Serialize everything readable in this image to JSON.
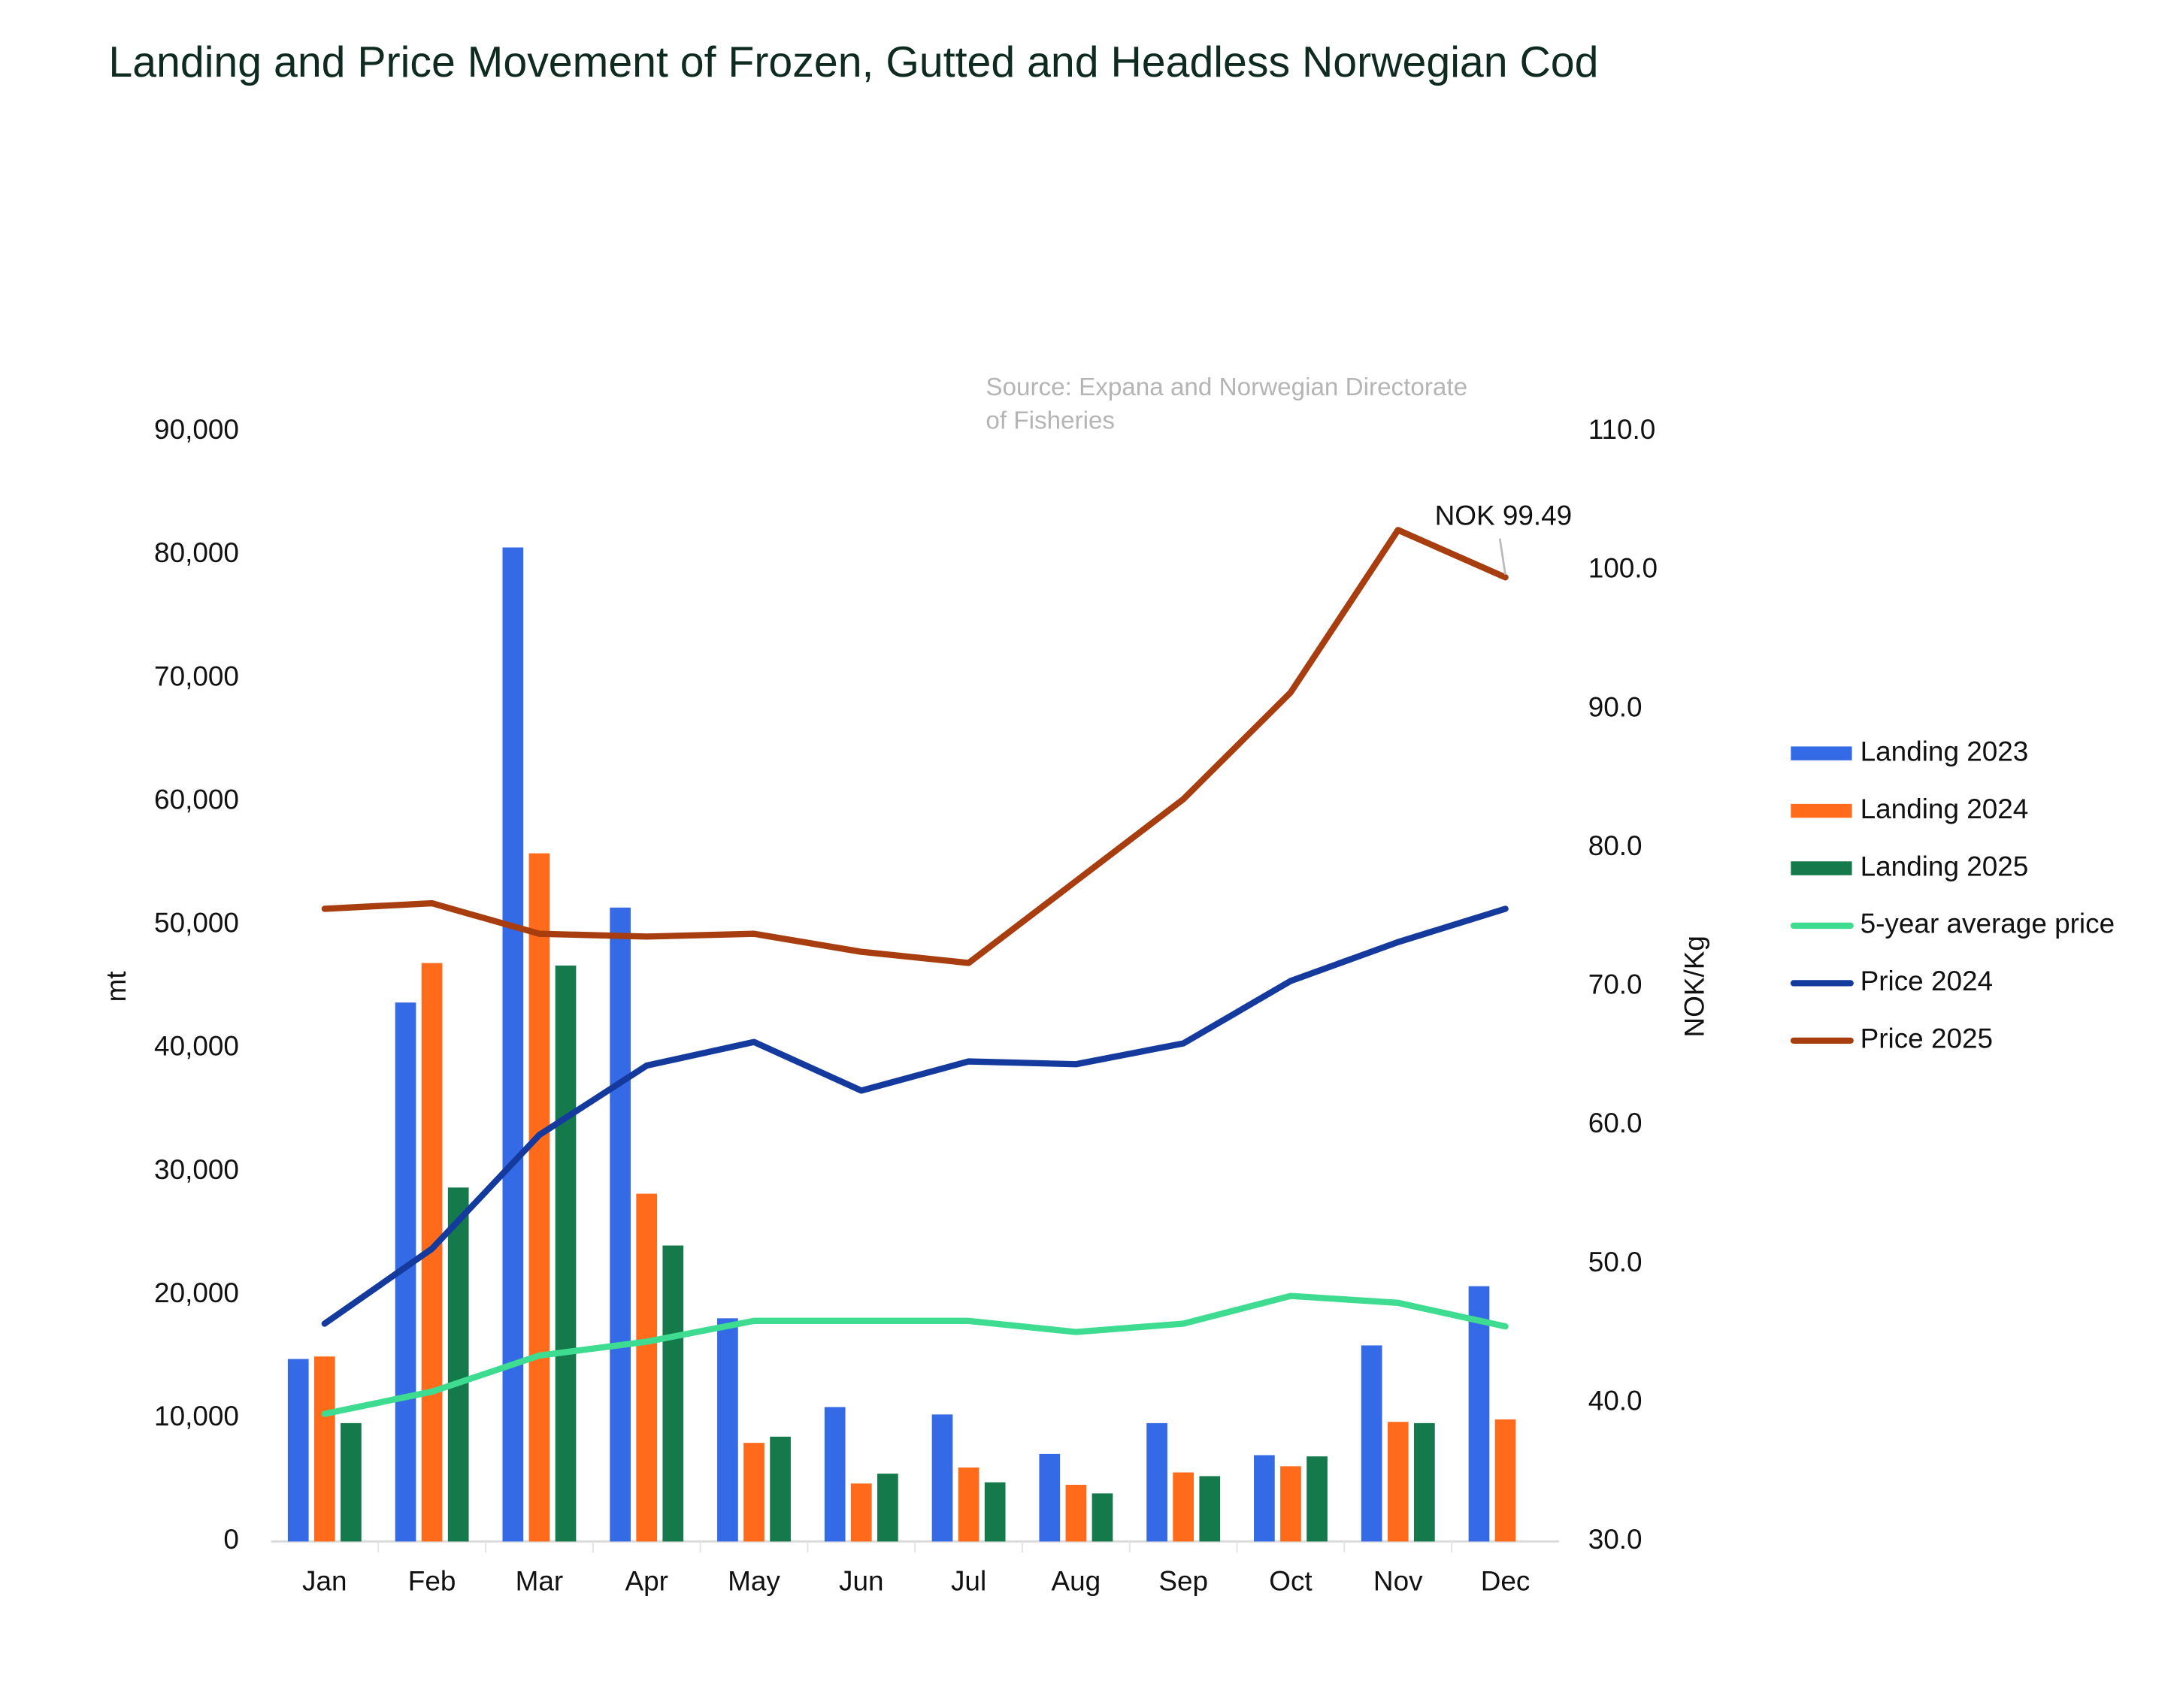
{
  "chart_data": {
    "type": "bar",
    "title": "Landing and Price Movement of Frozen, Gutted and Headless Norwegian Cod",
    "source": [
      "Source: Expana and Norwegian Directorate",
      "of Fisheries"
    ],
    "annotation": "NOK 99.49",
    "ylabel": "mt",
    "y2label": "NOK/Kg",
    "categories": [
      "Jan",
      "Feb",
      "Mar",
      "Apr",
      "May",
      "Jun",
      "Jul",
      "Aug",
      "Sep",
      "Oct",
      "Nov",
      "Dec"
    ],
    "series": [
      {
        "name": "Landing 2023",
        "type": "bar",
        "color": "#356ae6",
        "values": [
          14800,
          43700,
          80600,
          51400,
          18100,
          10900,
          10300,
          7100,
          9600,
          7000,
          15900,
          20700
        ]
      },
      {
        "name": "Landing 2024",
        "type": "bar",
        "color": "#ff6b1a",
        "values": [
          15000,
          46900,
          55800,
          28200,
          8000,
          4700,
          6000,
          4600,
          5600,
          6100,
          9700,
          9900
        ]
      },
      {
        "name": "Landing 2025",
        "type": "bar",
        "color": "#147a4b",
        "values": [
          9600,
          28700,
          46700,
          24000,
          8500,
          5500,
          4800,
          3900,
          5300,
          6900,
          9600,
          null
        ]
      },
      {
        "name": "5-year average price",
        "type": "line",
        "axis": "y2",
        "color": "#3ddc91",
        "values": [
          39.2,
          40.8,
          43.4,
          44.4,
          45.9,
          45.9,
          45.9,
          45.1,
          45.7,
          47.7,
          47.2,
          45.5
        ]
      },
      {
        "name": "Price 2024",
        "type": "line",
        "axis": "y2",
        "color": "#143a9e",
        "values": [
          45.7,
          51.1,
          59.3,
          64.3,
          66.0,
          62.5,
          64.6,
          64.4,
          65.9,
          70.4,
          73.2,
          75.6
        ]
      },
      {
        "name": "Price 2025",
        "type": "line",
        "axis": "y2",
        "color": "#a83d0f",
        "values": [
          75.6,
          76.0,
          73.8,
          73.6,
          73.8,
          72.5,
          71.7,
          77.6,
          83.5,
          91.2,
          102.9,
          99.49
        ]
      }
    ],
    "ylim": [
      0,
      90000
    ],
    "yticks": [
      0,
      {
        "value": 10000,
        "label": "10,000"
      },
      {
        "value": 20000,
        "label": "20,000"
      },
      {
        "value": 30000,
        "label": "30,000"
      },
      {
        "value": 40000,
        "label": "40,000"
      },
      {
        "value": 50000,
        "label": "50,000"
      },
      {
        "value": 60000,
        "label": "60,000"
      },
      {
        "value": 70000,
        "label": "70,000"
      },
      {
        "value": 80000,
        "label": "80,000"
      },
      {
        "value": 90000,
        "label": "90,000"
      }
    ],
    "y2lim": [
      30,
      110
    ],
    "y2ticks": [
      {
        "value": 30,
        "label": "30.0"
      },
      {
        "value": 40,
        "label": "40.0"
      },
      {
        "value": 50,
        "label": "50.0"
      },
      {
        "value": 60,
        "label": "60.0"
      },
      {
        "value": 70,
        "label": "70.0"
      },
      {
        "value": 80,
        "label": "80.0"
      },
      {
        "value": 90,
        "label": "90.0"
      },
      {
        "value": 100,
        "label": "100.0"
      },
      {
        "value": 110,
        "label": "110.0"
      }
    ],
    "grid": false,
    "legend": "right"
  }
}
